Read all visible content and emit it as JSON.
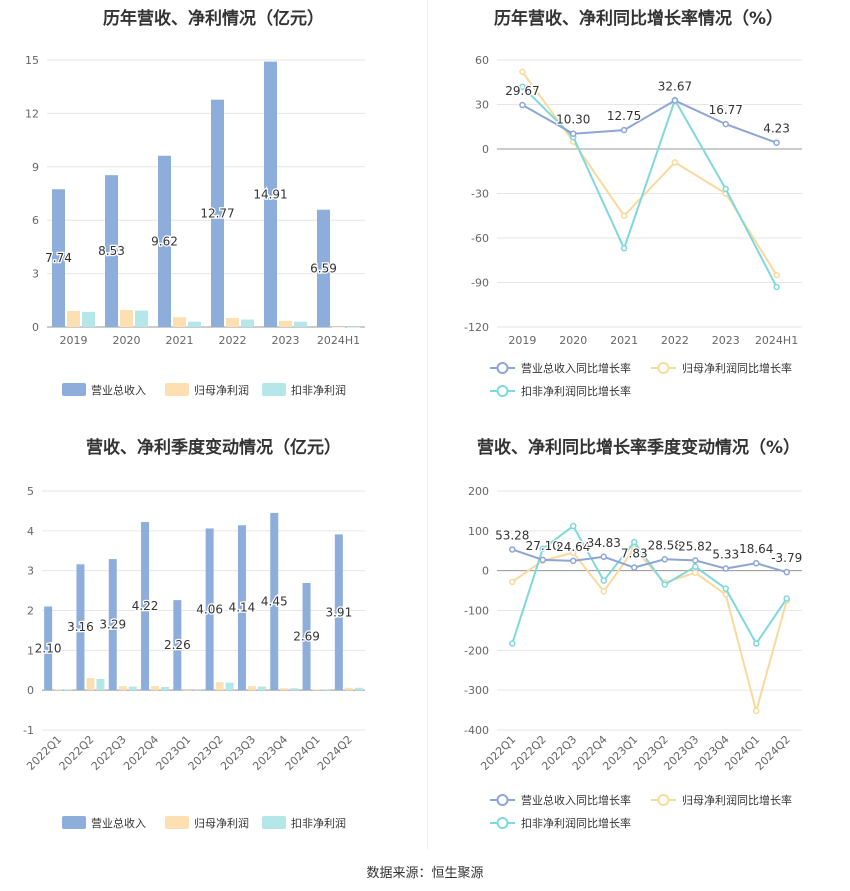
{
  "colors": {
    "revenue": "#8DADDB",
    "parent_profit": "#FCE0B2",
    "deducted_profit": "#B5E6E8",
    "revenue_line": "#8DA6D6",
    "parent_line": "#FBD99E",
    "deducted_line": "#7FD8DC",
    "grid": "#E6E6E6",
    "axis_text": "#666666",
    "label_text": "#333333"
  },
  "source": "数据来源：恒生聚源",
  "chart_data": [
    {
      "type": "bar",
      "title": "历年营收、净利情况（亿元）",
      "categories": [
        "2019",
        "2020",
        "2021",
        "2022",
        "2023",
        "2024H1"
      ],
      "ylim": [
        0,
        15
      ],
      "yticks": [
        0,
        3,
        6,
        9,
        12,
        15
      ],
      "series": [
        {
          "name": "营业总收入",
          "values": [
            7.74,
            8.53,
            9.62,
            12.77,
            14.91,
            6.59
          ],
          "labels": [
            "7.74",
            "8.53",
            "9.62",
            "12.77",
            "14.91",
            "6.59"
          ]
        },
        {
          "name": "归母净利润",
          "values": [
            0.9,
            0.95,
            0.55,
            0.5,
            0.35,
            0.0
          ]
        },
        {
          "name": "扣非净利润",
          "values": [
            0.85,
            0.92,
            0.3,
            0.42,
            0.3,
            0.0
          ]
        }
      ],
      "legend": "bottom"
    },
    {
      "type": "line",
      "title": "历年营收、净利同比增长率情况（%）",
      "categories": [
        "2019",
        "2020",
        "2021",
        "2022",
        "2023",
        "2024H1"
      ],
      "ylim": [
        -120,
        60
      ],
      "yticks": [
        -120,
        -90,
        -60,
        -30,
        0,
        30,
        60
      ],
      "series": [
        {
          "name": "营业总收入同比增长率",
          "values": [
            29.67,
            10.3,
            12.75,
            32.67,
            16.77,
            4.23
          ],
          "labels": [
            "29.67",
            "10.30",
            "12.75",
            "32.67",
            "16.77",
            "4.23"
          ]
        },
        {
          "name": "归母净利润同比增长率",
          "values": [
            52,
            5,
            -45,
            -9,
            -30,
            -85
          ]
        },
        {
          "name": "扣非净利润同比增长率",
          "values": [
            42,
            8,
            -67,
            33,
            -27,
            -93
          ]
        }
      ],
      "legend": "bottom"
    },
    {
      "type": "bar",
      "title": "营收、净利季度变动情况（亿元）",
      "categories": [
        "2022Q1",
        "2022Q2",
        "2022Q3",
        "2022Q4",
        "2023Q1",
        "2023Q2",
        "2023Q3",
        "2023Q4",
        "2024Q1",
        "2024Q2"
      ],
      "ylim": [
        -1,
        5
      ],
      "yticks": [
        -1,
        0,
        1,
        2,
        3,
        4,
        5
      ],
      "series": [
        {
          "name": "营业总收入",
          "values": [
            2.1,
            3.16,
            3.29,
            4.22,
            2.26,
            4.06,
            4.14,
            4.45,
            2.69,
            3.91
          ],
          "labels": [
            "2.10",
            "3.16",
            "3.29",
            "4.22",
            "2.26",
            "4.06",
            "4.14",
            "4.45",
            "2.69",
            "3.91"
          ]
        },
        {
          "name": "归母净利润",
          "values": [
            0.02,
            0.3,
            0.1,
            0.1,
            0.0,
            0.2,
            0.1,
            0.05,
            0.02,
            0.06
          ]
        },
        {
          "name": "扣非净利润",
          "values": [
            0.02,
            0.28,
            0.09,
            0.08,
            0.0,
            0.19,
            0.09,
            0.05,
            0.02,
            0.06
          ]
        }
      ],
      "legend": "bottom"
    },
    {
      "type": "line",
      "title": "营收、净利同比增长率季度变动情况（%）",
      "categories": [
        "2022Q1",
        "2022Q2",
        "2022Q3",
        "2022Q4",
        "2023Q1",
        "2023Q2",
        "2023Q3",
        "2023Q4",
        "2024Q1",
        "2024Q2"
      ],
      "ylim": [
        -400,
        200
      ],
      "yticks": [
        -400,
        -300,
        -200,
        -100,
        0,
        100,
        200
      ],
      "series": [
        {
          "name": "营业总收入同比增长率",
          "values": [
            53.28,
            27.1,
            24.64,
            34.83,
            7.83,
            28.58,
            25.82,
            5.33,
            18.64,
            -3.79
          ],
          "labels": [
            "53.28",
            "27.10",
            "24.64",
            "34.83",
            "7.83",
            "28.58",
            "25.82",
            "5.33",
            "18.64",
            "-3.79"
          ]
        },
        {
          "name": "归母净利润同比增长率",
          "values": [
            -28,
            25,
            45,
            -52,
            55,
            -30,
            -5,
            -60,
            -352,
            -75
          ]
        },
        {
          "name": "扣非净利润同比增长率",
          "values": [
            -183,
            55,
            112,
            -25,
            72,
            -35,
            10,
            -45,
            -183,
            -70
          ]
        }
      ],
      "legend": "bottom"
    }
  ]
}
